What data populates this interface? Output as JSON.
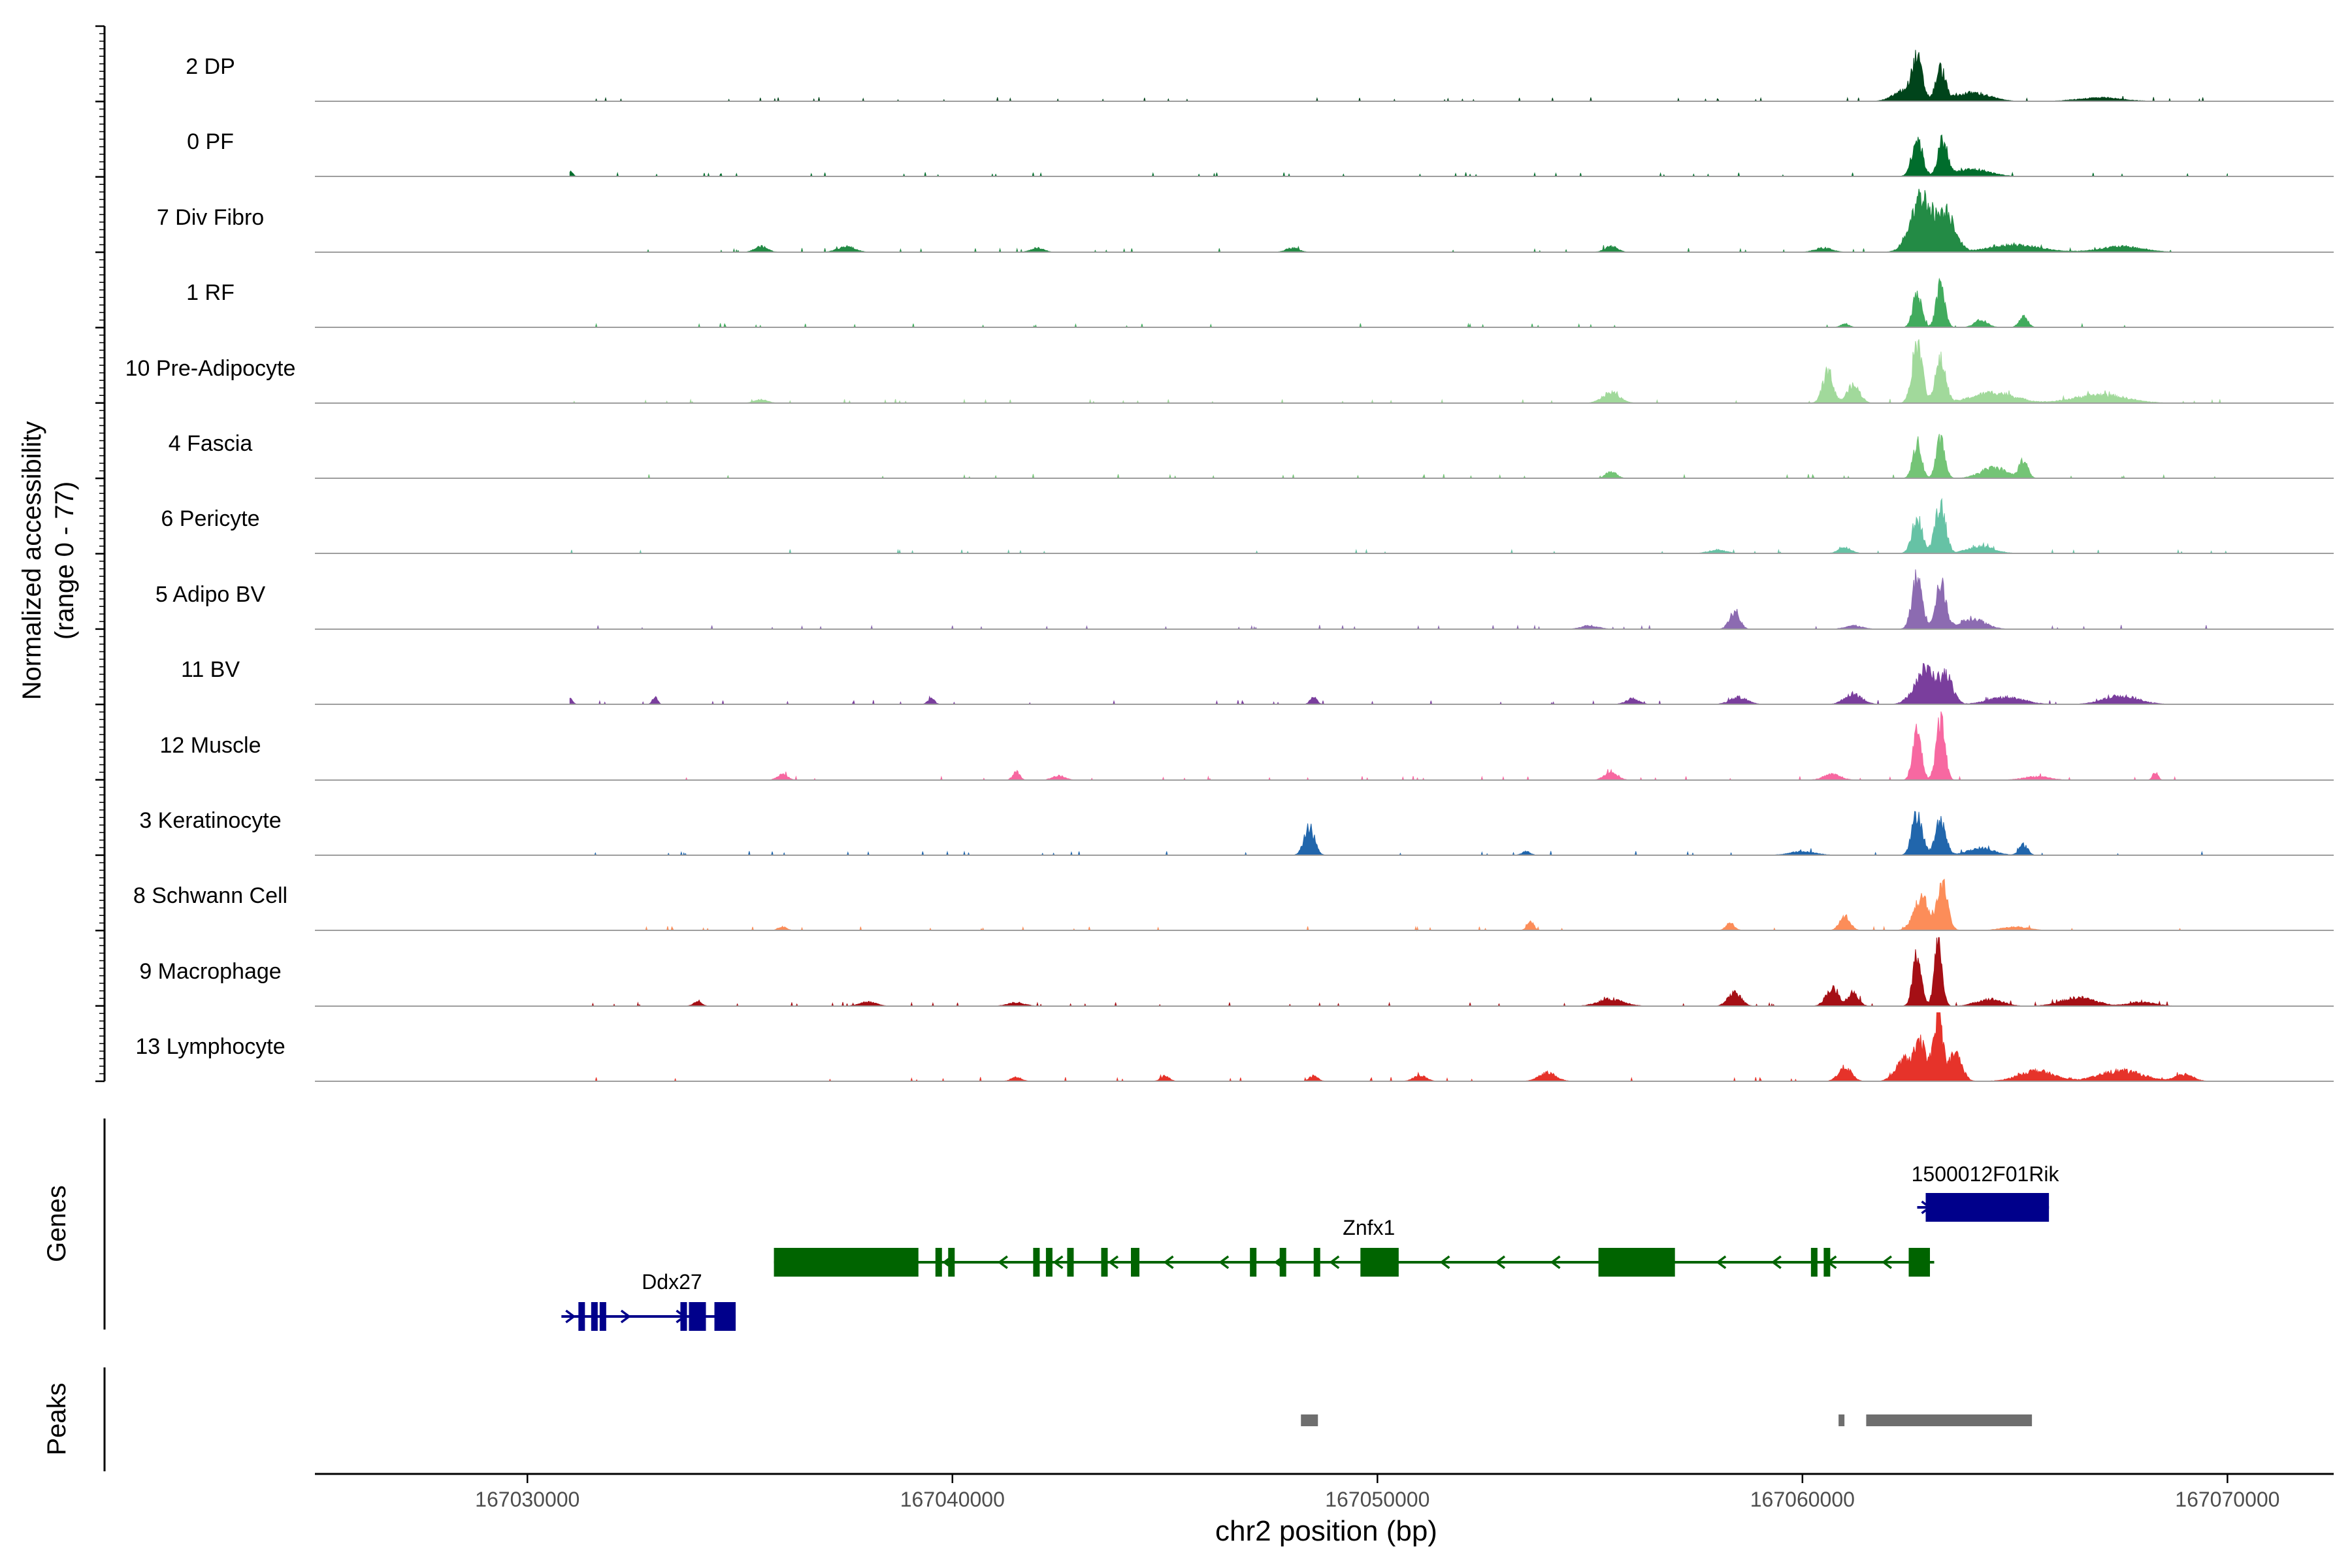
{
  "chart_data": {
    "type": "area",
    "title": "",
    "ylabel_line1": "Normalized accessibility",
    "ylabel_line2": "(range 0 - 77)",
    "xlabel": "chr2 position (bp)",
    "xlim": [
      167025000,
      167072500
    ],
    "xticks": [
      167030000,
      167040000,
      167050000,
      167060000,
      167070000
    ],
    "xtick_labels": [
      "167030000",
      "167040000",
      "167050000",
      "167060000",
      "167070000"
    ],
    "ylim": [
      0,
      77
    ],
    "baseline_color": "#9e9e9e",
    "series": [
      {
        "name": "2 DP",
        "color": "#00441b",
        "peaks": [
          [
            167062700,
            0.55,
            120
          ],
          [
            167063250,
            0.45,
            110
          ],
          [
            167062400,
            0.15,
            250
          ],
          [
            167064000,
            0.12,
            400
          ],
          [
            167067000,
            0.05,
            500
          ]
        ]
      },
      {
        "name": "0 PF",
        "color": "#006d2c",
        "peaks": [
          [
            167031000,
            0.08,
            60
          ],
          [
            167062700,
            0.55,
            120
          ],
          [
            167063300,
            0.5,
            110
          ],
          [
            167064000,
            0.1,
            400
          ]
        ]
      },
      {
        "name": "7 Div Fibro",
        "color": "#238b45",
        "peaks": [
          [
            167035500,
            0.08,
            150
          ],
          [
            167037500,
            0.08,
            200
          ],
          [
            167042000,
            0.06,
            150
          ],
          [
            167048000,
            0.06,
            150
          ],
          [
            167055500,
            0.08,
            150
          ],
          [
            167060500,
            0.06,
            200
          ],
          [
            167062800,
            0.8,
            250
          ],
          [
            167063400,
            0.55,
            200
          ],
          [
            167065000,
            0.1,
            600
          ],
          [
            167067500,
            0.08,
            500
          ]
        ]
      },
      {
        "name": "1 RF",
        "color": "#41ab5d",
        "peaks": [
          [
            167062700,
            0.5,
            100
          ],
          [
            167063250,
            0.6,
            100
          ],
          [
            167064200,
            0.1,
            150
          ],
          [
            167065200,
            0.15,
            100
          ],
          [
            167061000,
            0.05,
            100
          ]
        ]
      },
      {
        "name": "10 Pre-Adipocyte",
        "color": "#a1d99b",
        "peaks": [
          [
            167035500,
            0.05,
            150
          ],
          [
            167055500,
            0.15,
            200
          ],
          [
            167060600,
            0.45,
            120
          ],
          [
            167061200,
            0.25,
            150
          ],
          [
            167062700,
            0.85,
            120
          ],
          [
            167063250,
            0.6,
            120
          ],
          [
            167064500,
            0.15,
            500
          ],
          [
            167067000,
            0.12,
            600
          ]
        ]
      },
      {
        "name": "4 Fascia",
        "color": "#74c476",
        "peaks": [
          [
            167055500,
            0.1,
            120
          ],
          [
            167062700,
            0.5,
            100
          ],
          [
            167063250,
            0.55,
            100
          ],
          [
            167064500,
            0.15,
            300
          ],
          [
            167065200,
            0.25,
            100
          ]
        ]
      },
      {
        "name": "6 Pericyte",
        "color": "#66c2a5",
        "peaks": [
          [
            167061000,
            0.08,
            150
          ],
          [
            167062700,
            0.5,
            120
          ],
          [
            167063250,
            0.7,
            120
          ],
          [
            167064200,
            0.1,
            300
          ],
          [
            167058000,
            0.05,
            200
          ]
        ]
      },
      {
        "name": "5 Adipo BV",
        "color": "#8c6bb1",
        "peaks": [
          [
            167058400,
            0.25,
            120
          ],
          [
            167062700,
            0.75,
            120
          ],
          [
            167063250,
            0.65,
            120
          ],
          [
            167064000,
            0.15,
            300
          ],
          [
            167061200,
            0.05,
            200
          ],
          [
            167055000,
            0.05,
            200
          ]
        ]
      },
      {
        "name": "11 BV",
        "color": "#7a3e9d",
        "peaks": [
          [
            167031000,
            0.1,
            60
          ],
          [
            167033000,
            0.1,
            60
          ],
          [
            167039500,
            0.08,
            80
          ],
          [
            167048500,
            0.1,
            80
          ],
          [
            167056000,
            0.08,
            150
          ],
          [
            167058500,
            0.1,
            200
          ],
          [
            167061200,
            0.15,
            200
          ],
          [
            167062900,
            0.5,
            250
          ],
          [
            167063400,
            0.35,
            150
          ],
          [
            167064800,
            0.1,
            400
          ],
          [
            167067500,
            0.12,
            400
          ]
        ]
      },
      {
        "name": "12 Muscle",
        "color": "#f768a1",
        "peaks": [
          [
            167036000,
            0.08,
            120
          ],
          [
            167041500,
            0.12,
            80
          ],
          [
            167042500,
            0.06,
            150
          ],
          [
            167055500,
            0.12,
            150
          ],
          [
            167060700,
            0.08,
            200
          ],
          [
            167062700,
            0.7,
            100
          ],
          [
            167063250,
            0.9,
            100
          ],
          [
            167065500,
            0.05,
            300
          ],
          [
            167068300,
            0.12,
            60
          ]
        ]
      },
      {
        "name": "3 Keratinocyte",
        "color": "#2166ac",
        "peaks": [
          [
            167048400,
            0.4,
            120
          ],
          [
            167053500,
            0.05,
            100
          ],
          [
            167062700,
            0.6,
            120
          ],
          [
            167063250,
            0.5,
            120
          ],
          [
            167064200,
            0.1,
            300
          ],
          [
            167065200,
            0.15,
            100
          ],
          [
            167060000,
            0.05,
            300
          ]
        ]
      },
      {
        "name": "8 Schwann Cell",
        "color": "#fc8d59",
        "peaks": [
          [
            167036000,
            0.05,
            100
          ],
          [
            167053600,
            0.12,
            80
          ],
          [
            167058300,
            0.1,
            100
          ],
          [
            167061000,
            0.2,
            120
          ],
          [
            167062800,
            0.45,
            180
          ],
          [
            167063300,
            0.65,
            120
          ],
          [
            167065000,
            0.05,
            300
          ]
        ]
      },
      {
        "name": "9 Macrophage",
        "color": "#a50f15",
        "peaks": [
          [
            167034000,
            0.06,
            100
          ],
          [
            167038000,
            0.06,
            200
          ],
          [
            167041500,
            0.05,
            200
          ],
          [
            167055500,
            0.1,
            300
          ],
          [
            167058400,
            0.2,
            150
          ],
          [
            167060700,
            0.25,
            150
          ],
          [
            167061200,
            0.2,
            120
          ],
          [
            167062700,
            0.75,
            100
          ],
          [
            167063200,
            0.95,
            90
          ],
          [
            167064400,
            0.1,
            300
          ],
          [
            167066500,
            0.12,
            400
          ],
          [
            167068000,
            0.06,
            300
          ]
        ]
      },
      {
        "name": "13 Lymphocyte",
        "color": "#e6332a",
        "peaks": [
          [
            167041500,
            0.06,
            120
          ],
          [
            167045000,
            0.08,
            100
          ],
          [
            167048500,
            0.08,
            100
          ],
          [
            167051000,
            0.08,
            150
          ],
          [
            167054000,
            0.12,
            200
          ],
          [
            167061000,
            0.2,
            150
          ],
          [
            167062400,
            0.3,
            200
          ],
          [
            167062800,
            0.5,
            150
          ],
          [
            167063200,
            0.95,
            100
          ],
          [
            167063600,
            0.4,
            150
          ],
          [
            167065500,
            0.15,
            400
          ],
          [
            167067500,
            0.15,
            500
          ],
          [
            167069000,
            0.1,
            200
          ]
        ]
      }
    ],
    "genes_label": "Genes",
    "genes": [
      {
        "name": "Ddx27",
        "strand": "+",
        "color": "#00008b",
        "start": 167030800,
        "end": 167034900,
        "row": 3,
        "exons": [
          [
            167031200,
            167031300
          ],
          [
            167031500,
            167031600
          ],
          [
            167031700,
            167031800
          ],
          [
            167033600,
            167033700
          ],
          [
            167033800,
            167034200
          ],
          [
            167034400,
            167034900
          ]
        ]
      },
      {
        "name": "Znfx1",
        "strand": "-",
        "color": "#006400",
        "start": 167035800,
        "end": 167063100,
        "row": 2,
        "exons": [
          [
            167035800,
            167039200
          ],
          [
            167039600,
            167039700
          ],
          [
            167039900,
            167040000
          ],
          [
            167041900,
            167042000
          ],
          [
            167042200,
            167042300
          ],
          [
            167042700,
            167042800
          ],
          [
            167043500,
            167043600
          ],
          [
            167044200,
            167044400
          ],
          [
            167047000,
            167047100
          ],
          [
            167047700,
            167047800
          ],
          [
            167048500,
            167048600
          ],
          [
            167049600,
            167050500
          ],
          [
            167055200,
            167057000
          ],
          [
            167060200,
            167060300
          ],
          [
            167060500,
            167060600
          ],
          [
            167062500,
            167063000
          ]
        ]
      },
      {
        "name": "1500012F01Rik",
        "strand": "+",
        "color": "#00008b",
        "start": 167062700,
        "end": 167065800,
        "row": 1,
        "exons": [
          [
            167062900,
            167065800
          ]
        ]
      }
    ],
    "peaks_label": "Peaks",
    "peaks_color": "#6e6e6e",
    "peak_regions": [
      [
        167048200,
        167048600
      ],
      [
        167060850,
        167060950
      ],
      [
        167061500,
        167065400
      ]
    ]
  }
}
